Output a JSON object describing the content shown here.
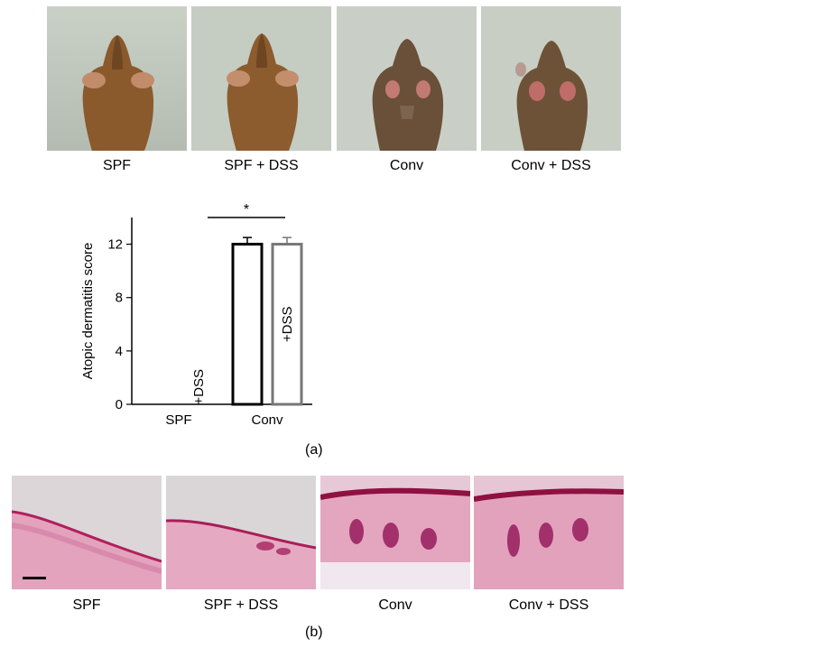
{
  "panel_a": {
    "photo_captions": [
      "SPF",
      "SPF + DSS",
      "Conv",
      "Conv + DSS"
    ],
    "label": "(a)"
  },
  "panel_b": {
    "histology_captions": [
      "SPF",
      "SPF + DSS",
      "Conv",
      "Conv + DSS"
    ],
    "label": "(b)"
  },
  "chart_data": {
    "type": "bar",
    "ylabel": "Atopic dermatitis score",
    "yticks": [
      0,
      4,
      8,
      12
    ],
    "ylim": [
      0,
      14
    ],
    "groups": [
      "SPF",
      "Conv"
    ],
    "bars": [
      {
        "group": "SPF",
        "label": "",
        "value": 0,
        "error": 0,
        "color": "#000000"
      },
      {
        "group": "SPF",
        "label": "+DSS",
        "value": 0,
        "error": 0,
        "color": "#777777"
      },
      {
        "group": "Conv",
        "label": "",
        "value": 12,
        "error": 0.5,
        "color": "#000000"
      },
      {
        "group": "Conv",
        "label": "+DSS",
        "value": 12,
        "error": 0.5,
        "color": "#777777"
      }
    ],
    "significance": "*"
  }
}
